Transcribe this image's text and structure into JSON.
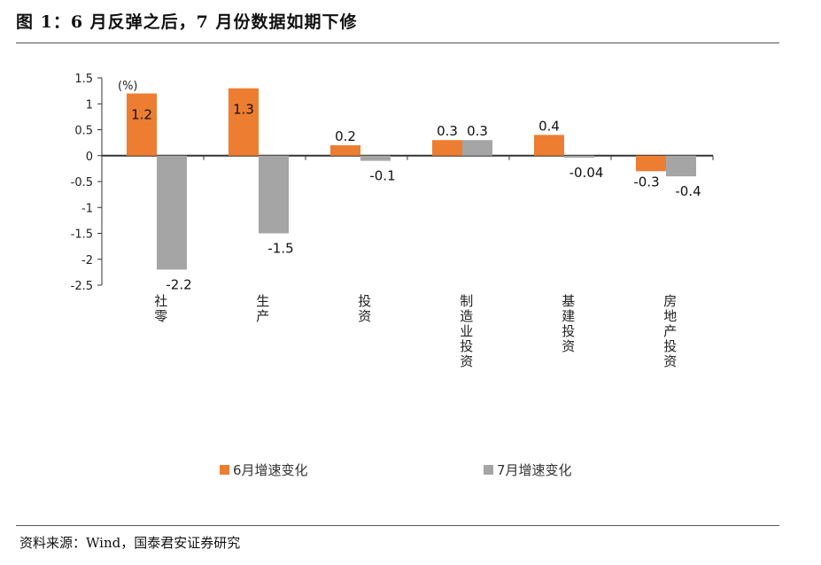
{
  "title": "图 1：6 月反弹之后，7 月份数据如期下修",
  "source": "资料来源：Wind，国泰君安证券研究",
  "chart_data": {
    "type": "bar",
    "unit_label": "(%)",
    "categories": [
      "社零",
      "生产",
      "投资",
      "制造业投资",
      "基建投资",
      "房地产投资"
    ],
    "series": [
      {
        "name": "6月增速变化",
        "color": "#ED7D31",
        "values": [
          1.2,
          1.3,
          0.2,
          0.3,
          0.4,
          -0.3
        ],
        "labels": [
          "1.2",
          "1.3",
          "0.2",
          "0.3",
          "0.4",
          "-0.3"
        ]
      },
      {
        "name": "7月增速变化",
        "color": "#A5A5A5",
        "values": [
          -2.2,
          -1.5,
          -0.1,
          0.3,
          -0.04,
          -0.4
        ],
        "labels": [
          "-2.2",
          "-1.5",
          "-0.1",
          "0.3",
          "-0.04",
          "-0.4"
        ]
      }
    ],
    "ylim": [
      -2.5,
      1.5
    ],
    "yticks": [
      "1.5",
      "1",
      "0.5",
      "0",
      "-0.5",
      "-1",
      "-1.5",
      "-2",
      "-2.5"
    ],
    "legend_position": "bottom",
    "grid": false
  }
}
